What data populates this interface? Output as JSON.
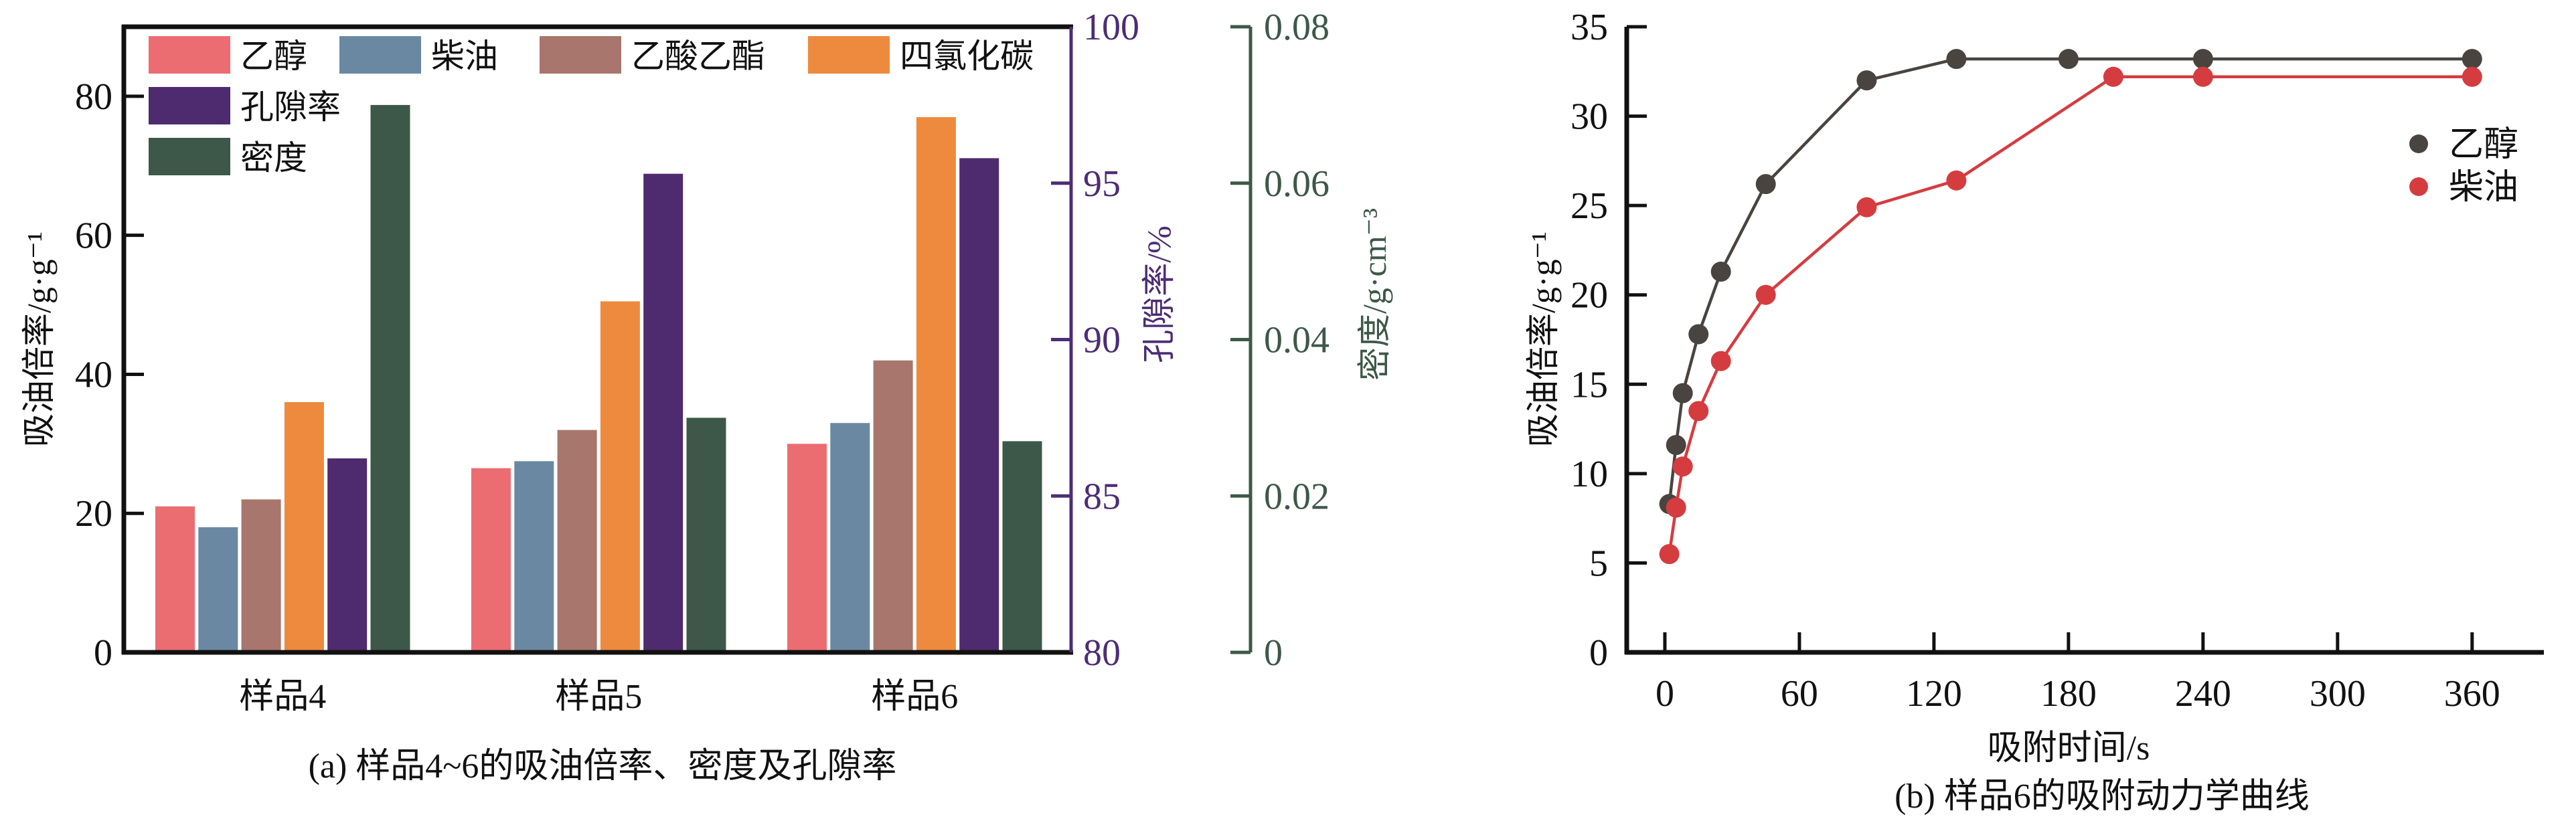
{
  "figure": {
    "background": "#ffffff",
    "text_color": "#111111"
  },
  "chart_data": [
    {
      "id": "a",
      "type": "bar",
      "caption": "(a) 样品4~6的吸油倍率、密度及孔隙率",
      "categories": [
        "样品4",
        "样品5",
        "样品6"
      ],
      "series": [
        {
          "key": "ethanol",
          "name": "乙醇",
          "axis": "left",
          "color": "#ec6d71",
          "values": [
            21,
            26.5,
            30
          ]
        },
        {
          "key": "diesel",
          "name": "柴油",
          "axis": "left",
          "color": "#6a88a2",
          "values": [
            18,
            27.5,
            33
          ]
        },
        {
          "key": "ethyl-acetate",
          "name": "乙酸乙酯",
          "axis": "left",
          "color": "#a8766c",
          "values": [
            22,
            32,
            42
          ]
        },
        {
          "key": "carbon-tetrachloride",
          "name": "四氯化碳",
          "axis": "left",
          "color": "#ee8a3d",
          "values": [
            36,
            50.5,
            77
          ]
        },
        {
          "key": "porosity",
          "name": "孔隙率",
          "axis": "porosity",
          "color": "#4e2a6e",
          "values": [
            86.2,
            95.3,
            95.8
          ]
        },
        {
          "key": "density",
          "name": "密度",
          "axis": "density",
          "color": "#3d5848",
          "values": [
            0.07,
            0.03,
            0.027
          ]
        }
      ],
      "left_axis": {
        "label": "吸油倍率/g·g⁻¹",
        "min": 0,
        "max": 90,
        "ticks": [
          0,
          20,
          40,
          60,
          80
        ]
      },
      "porosity_axis": {
        "label": "孔隙率/%",
        "min": 80,
        "max": 100,
        "ticks": [
          80,
          85,
          90,
          95,
          100
        ],
        "color": "#4c2d75"
      },
      "density_axis": {
        "label": "密度/g·cm⁻³",
        "min": 0,
        "max": 0.08,
        "tick_labels": [
          "0",
          "0.02",
          "0.04",
          "0.06",
          "0.08"
        ],
        "tick_values": [
          0,
          0.02,
          0.04,
          0.06,
          0.08
        ],
        "color": "#3d5848"
      }
    },
    {
      "id": "b",
      "type": "line",
      "caption": "(b) 样品6的吸附动力学曲线",
      "xlabel": "吸附时间/s",
      "ylabel": "吸油倍率/g·g⁻¹",
      "x_axis": {
        "min": -17,
        "max": 392,
        "ticks": [
          0,
          60,
          120,
          180,
          240,
          300,
          360
        ]
      },
      "y_axis": {
        "min": 0,
        "max": 35,
        "ticks": [
          0,
          5,
          10,
          15,
          20,
          25,
          30,
          35
        ]
      },
      "legend": {
        "position": "inside-right",
        "items": [
          "乙醇",
          "柴油"
        ]
      },
      "series": [
        {
          "key": "ethanol",
          "name": "乙醇",
          "color": "#494440",
          "x": [
            2,
            5,
            8,
            15,
            25,
            45,
            90,
            130,
            180,
            240,
            360
          ],
          "y": [
            8.3,
            11.6,
            14.5,
            17.8,
            21.3,
            26.2,
            32.0,
            33.2,
            33.2,
            33.2,
            33.2
          ]
        },
        {
          "key": "diesel",
          "name": "柴油",
          "color": "#d53c40",
          "x": [
            2,
            5,
            8,
            15,
            25,
            45,
            90,
            130,
            200,
            240,
            360
          ],
          "y": [
            5.5,
            8.1,
            10.4,
            13.5,
            16.3,
            20.0,
            24.9,
            26.4,
            32.2,
            32.2,
            32.2
          ]
        }
      ]
    }
  ]
}
